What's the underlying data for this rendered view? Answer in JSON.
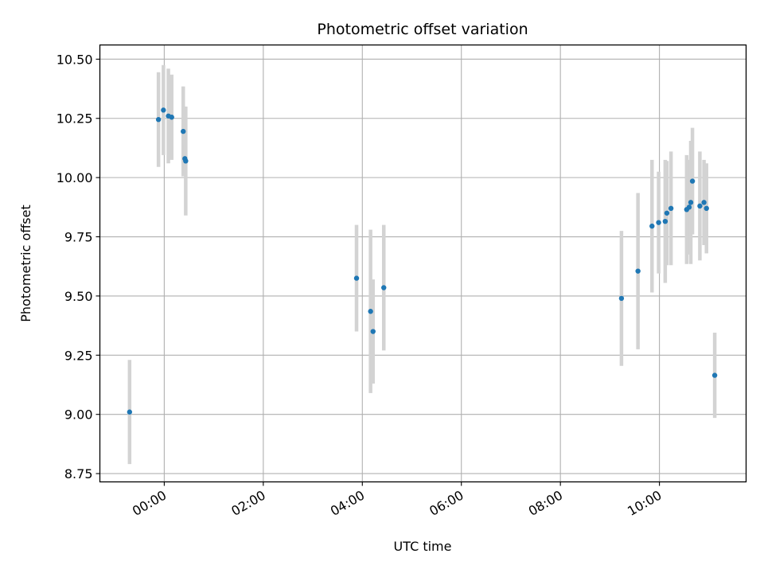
{
  "chart_data": {
    "type": "scatter",
    "title": "Photometric offset variation",
    "xlabel": "UTC time",
    "ylabel": "Photometric offset",
    "x_tick_labels": [
      "00:00",
      "02:00",
      "04:00",
      "06:00",
      "08:00",
      "10:00"
    ],
    "x_tick_hours": [
      0,
      2,
      4,
      6,
      8,
      10
    ],
    "xlim_hours": [
      -1.3,
      11.75
    ],
    "y_ticks": [
      "8.75",
      "9.00",
      "9.25",
      "9.50",
      "9.75",
      "10.00",
      "10.25",
      "10.50"
    ],
    "ylim": [
      8.715,
      10.56
    ],
    "grid": true,
    "marker_color": "#1f77b4",
    "errorbar_color": "#d3d3d3",
    "points": [
      {
        "t": "23:18",
        "y": 9.01,
        "err": 0.22
      },
      {
        "t": "23:53",
        "y": 10.245,
        "err": 0.2
      },
      {
        "t": "23:59",
        "y": 10.285,
        "err": 0.19
      },
      {
        "t": "00:05",
        "y": 10.26,
        "err": 0.2
      },
      {
        "t": "00:09",
        "y": 10.255,
        "err": 0.18
      },
      {
        "t": "00:23",
        "y": 10.195,
        "err": 0.19
      },
      {
        "t": "00:25",
        "y": 10.08,
        "err": 0.06
      },
      {
        "t": "00:26",
        "y": 10.07,
        "err": 0.23
      },
      {
        "t": "03:53",
        "y": 9.575,
        "err": 0.225
      },
      {
        "t": "04:10",
        "y": 9.435,
        "err": 0.345
      },
      {
        "t": "04:13",
        "y": 9.35,
        "err": 0.22
      },
      {
        "t": "04:26",
        "y": 9.535,
        "err": 0.265
      },
      {
        "t": "09:14",
        "y": 9.49,
        "err": 0.285
      },
      {
        "t": "09:34",
        "y": 9.605,
        "err": 0.33
      },
      {
        "t": "09:51",
        "y": 9.795,
        "err": 0.28
      },
      {
        "t": "09:59",
        "y": 9.81,
        "err": 0.215
      },
      {
        "t": "10:07",
        "y": 9.815,
        "err": 0.26
      },
      {
        "t": "10:09",
        "y": 9.85,
        "err": 0.22
      },
      {
        "t": "10:14",
        "y": 9.87,
        "err": 0.24
      },
      {
        "t": "10:33",
        "y": 9.865,
        "err": 0.23
      },
      {
        "t": "10:36",
        "y": 9.875,
        "err": 0.2
      },
      {
        "t": "10:38",
        "y": 9.895,
        "err": 0.26
      },
      {
        "t": "10:40",
        "y": 9.985,
        "err": 0.225
      },
      {
        "t": "10:49",
        "y": 9.88,
        "err": 0.23
      },
      {
        "t": "10:54",
        "y": 9.895,
        "err": 0.18
      },
      {
        "t": "10:57",
        "y": 9.87,
        "err": 0.19
      },
      {
        "t": "11:07",
        "y": 9.165,
        "err": 0.18
      }
    ]
  }
}
